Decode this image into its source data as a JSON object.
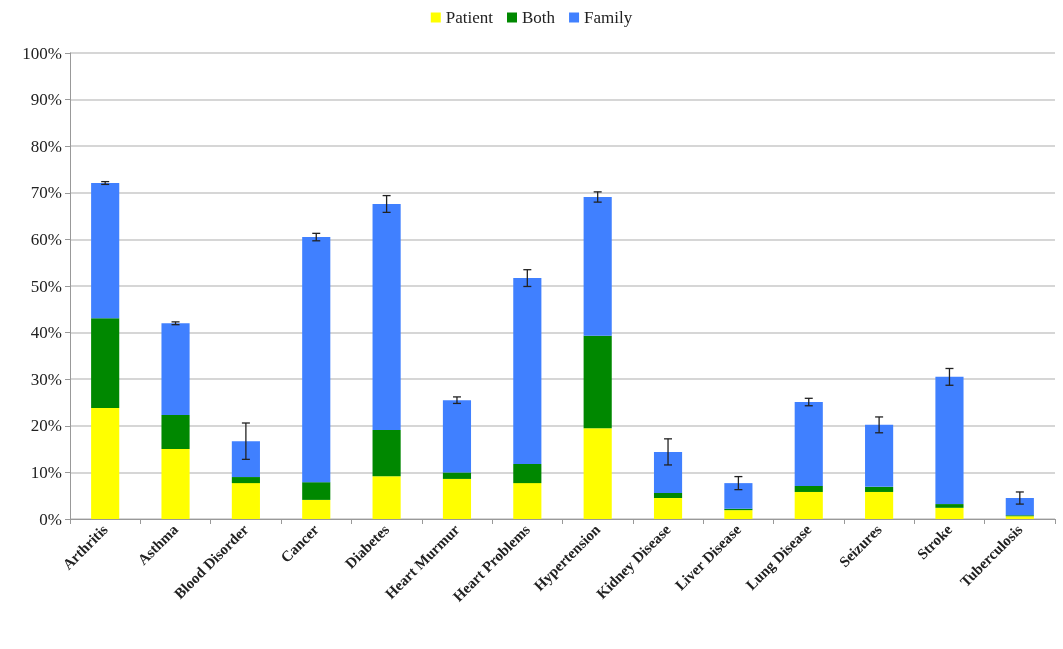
{
  "chart_data": {
    "type": "bar",
    "stacked": true,
    "categories": [
      "Arthritis",
      "Asthma",
      "Blood Disorder",
      "Cancer",
      "Diabetes",
      "Heart Murmur",
      "Heart Problems",
      "Hypertension",
      "Kidney Disease",
      "Liver Disease",
      "Lung Disease",
      "Seizures",
      "Stroke",
      "Tuberculosis"
    ],
    "series": [
      {
        "name": "Patient",
        "color": "#ffff00",
        "values": [
          23.8,
          15.0,
          7.7,
          4.1,
          9.2,
          8.6,
          7.7,
          19.5,
          4.5,
          1.9,
          5.8,
          5.8,
          2.4,
          0.6
        ]
      },
      {
        "name": "Both",
        "color": "#008800",
        "values": [
          19.3,
          7.3,
          1.3,
          3.8,
          9.9,
          1.4,
          4.1,
          19.8,
          1.1,
          0.3,
          1.3,
          1.1,
          0.8,
          0.2
        ]
      },
      {
        "name": "Family",
        "color": "#4080ff",
        "values": [
          29.0,
          19.7,
          7.7,
          52.6,
          48.5,
          15.5,
          39.9,
          29.8,
          8.8,
          5.5,
          18.0,
          13.3,
          27.3,
          3.7
        ],
        "errors": [
          0.3,
          0.3,
          3.9,
          0.8,
          1.8,
          0.7,
          1.8,
          1.1,
          2.8,
          1.4,
          0.8,
          1.7,
          1.8,
          1.3
        ]
      }
    ],
    "ylim": [
      0,
      100
    ],
    "yticks": [
      {
        "value": 0,
        "label": "0%"
      },
      {
        "value": 10,
        "label": "10%"
      },
      {
        "value": 20,
        "label": "20%"
      },
      {
        "value": 30,
        "label": "30%"
      },
      {
        "value": 40,
        "label": "40%"
      },
      {
        "value": 50,
        "label": "50%"
      },
      {
        "value": 60,
        "label": "60%"
      },
      {
        "value": 70,
        "label": "70%"
      },
      {
        "value": 80,
        "label": "80%"
      },
      {
        "value": 90,
        "label": "90%"
      },
      {
        "value": 100,
        "label": "100%"
      }
    ],
    "grid": "y",
    "legend": "top"
  }
}
